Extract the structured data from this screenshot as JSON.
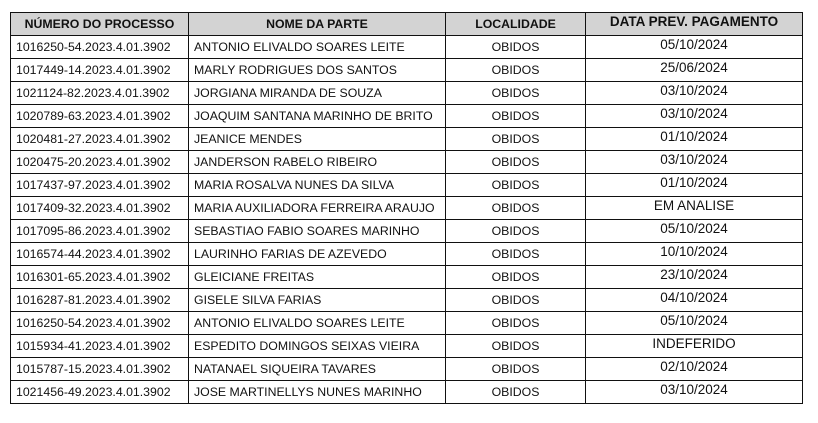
{
  "table": {
    "headers": [
      "NÚMERO DO PROCESSO",
      "NOME DA PARTE",
      "LOCALIDADE",
      "DATA PREV. PAGAMENTO"
    ],
    "header_bg": "#d3d3d3",
    "rows": [
      [
        "1016250-54.2023.4.01.3902",
        "ANTONIO ELIVALDO SOARES LEITE",
        "OBIDOS",
        "05/10/2024"
      ],
      [
        "1017449-14.2023.4.01.3902",
        "MARLY RODRIGUES DOS SANTOS",
        "OBIDOS",
        "25/06/2024"
      ],
      [
        "1021124-82.2023.4.01.3902",
        "JORGIANA MIRANDA DE SOUZA",
        "OBIDOS",
        "03/10/2024"
      ],
      [
        "1020789-63.2023.4.01.3902",
        "JOAQUIM SANTANA MARINHO DE BRITO",
        "OBIDOS",
        "03/10/2024"
      ],
      [
        "1020481-27.2023.4.01.3902",
        "JEANICE MENDES",
        "OBIDOS",
        "01/10/2024"
      ],
      [
        "1020475-20.2023.4.01.3902",
        "JANDERSON RABELO RIBEIRO",
        "OBIDOS",
        "03/10/2024"
      ],
      [
        "1017437-97.2023.4.01.3902",
        "MARIA ROSALVA NUNES DA SILVA",
        "OBIDOS",
        "01/10/2024"
      ],
      [
        "1017409-32.2023.4.01.3902",
        "MARIA AUXILIADORA FERREIRA ARAUJO",
        "OBIDOS",
        "EM ANALISE"
      ],
      [
        "1017095-86.2023.4.01.3902",
        "SEBASTIAO FABIO SOARES MARINHO",
        "OBIDOS",
        "05/10/2024"
      ],
      [
        "1016574-44.2023.4.01.3902",
        "LAURINHO FARIAS DE AZEVEDO",
        "OBIDOS",
        "10/10/2024"
      ],
      [
        "1016301-65.2023.4.01.3902",
        "GLEICIANE FREITAS",
        "OBIDOS",
        "23/10/2024"
      ],
      [
        "1016287-81.2023.4.01.3902",
        "GISELE SILVA FARIAS",
        "OBIDOS",
        "04/10/2024"
      ],
      [
        "1016250-54.2023.4.01.3902",
        "ANTONIO ELIVALDO SOARES LEITE",
        "OBIDOS",
        "05/10/2024"
      ],
      [
        "1015934-41.2023.4.01.3902",
        "ESPEDITO DOMINGOS SEIXAS VIEIRA",
        "OBIDOS",
        "INDEFERIDO"
      ],
      [
        "1015787-15.2023.4.01.3902",
        "NATANAEL SIQUEIRA TAVARES",
        "OBIDOS",
        "02/10/2024"
      ],
      [
        "1021456-49.2023.4.01.3902",
        "JOSE MARTINELLYS NUNES MARINHO",
        "OBIDOS",
        "03/10/2024"
      ]
    ]
  }
}
